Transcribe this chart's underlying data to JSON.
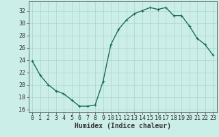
{
  "x": [
    0,
    1,
    2,
    3,
    4,
    5,
    6,
    7,
    8,
    9,
    10,
    11,
    12,
    13,
    14,
    15,
    16,
    17,
    18,
    19,
    20,
    21,
    22,
    23
  ],
  "y": [
    23.8,
    21.5,
    20.0,
    19.0,
    18.5,
    17.5,
    16.5,
    16.5,
    16.7,
    20.5,
    26.5,
    29.0,
    30.5,
    31.5,
    32.0,
    32.5,
    32.2,
    32.5,
    31.2,
    31.2,
    29.5,
    27.5,
    26.5,
    24.8
  ],
  "line_color": "#1a6b5a",
  "marker": "+",
  "marker_size": 3,
  "bg_color": "#cceee8",
  "grid_color": "#aad4cc",
  "xlabel": "Humidex (Indice chaleur)",
  "ylim": [
    15.5,
    33.5
  ],
  "xlim": [
    -0.5,
    23.5
  ],
  "yticks": [
    16,
    18,
    20,
    22,
    24,
    26,
    28,
    30,
    32
  ],
  "xticks": [
    0,
    1,
    2,
    3,
    4,
    5,
    6,
    7,
    8,
    9,
    10,
    11,
    12,
    13,
    14,
    15,
    16,
    17,
    18,
    19,
    20,
    21,
    22,
    23
  ],
  "axis_color": "#333333",
  "xlabel_fontsize": 7,
  "tick_fontsize": 6,
  "linewidth": 1.0,
  "marker_edge_width": 0.8
}
